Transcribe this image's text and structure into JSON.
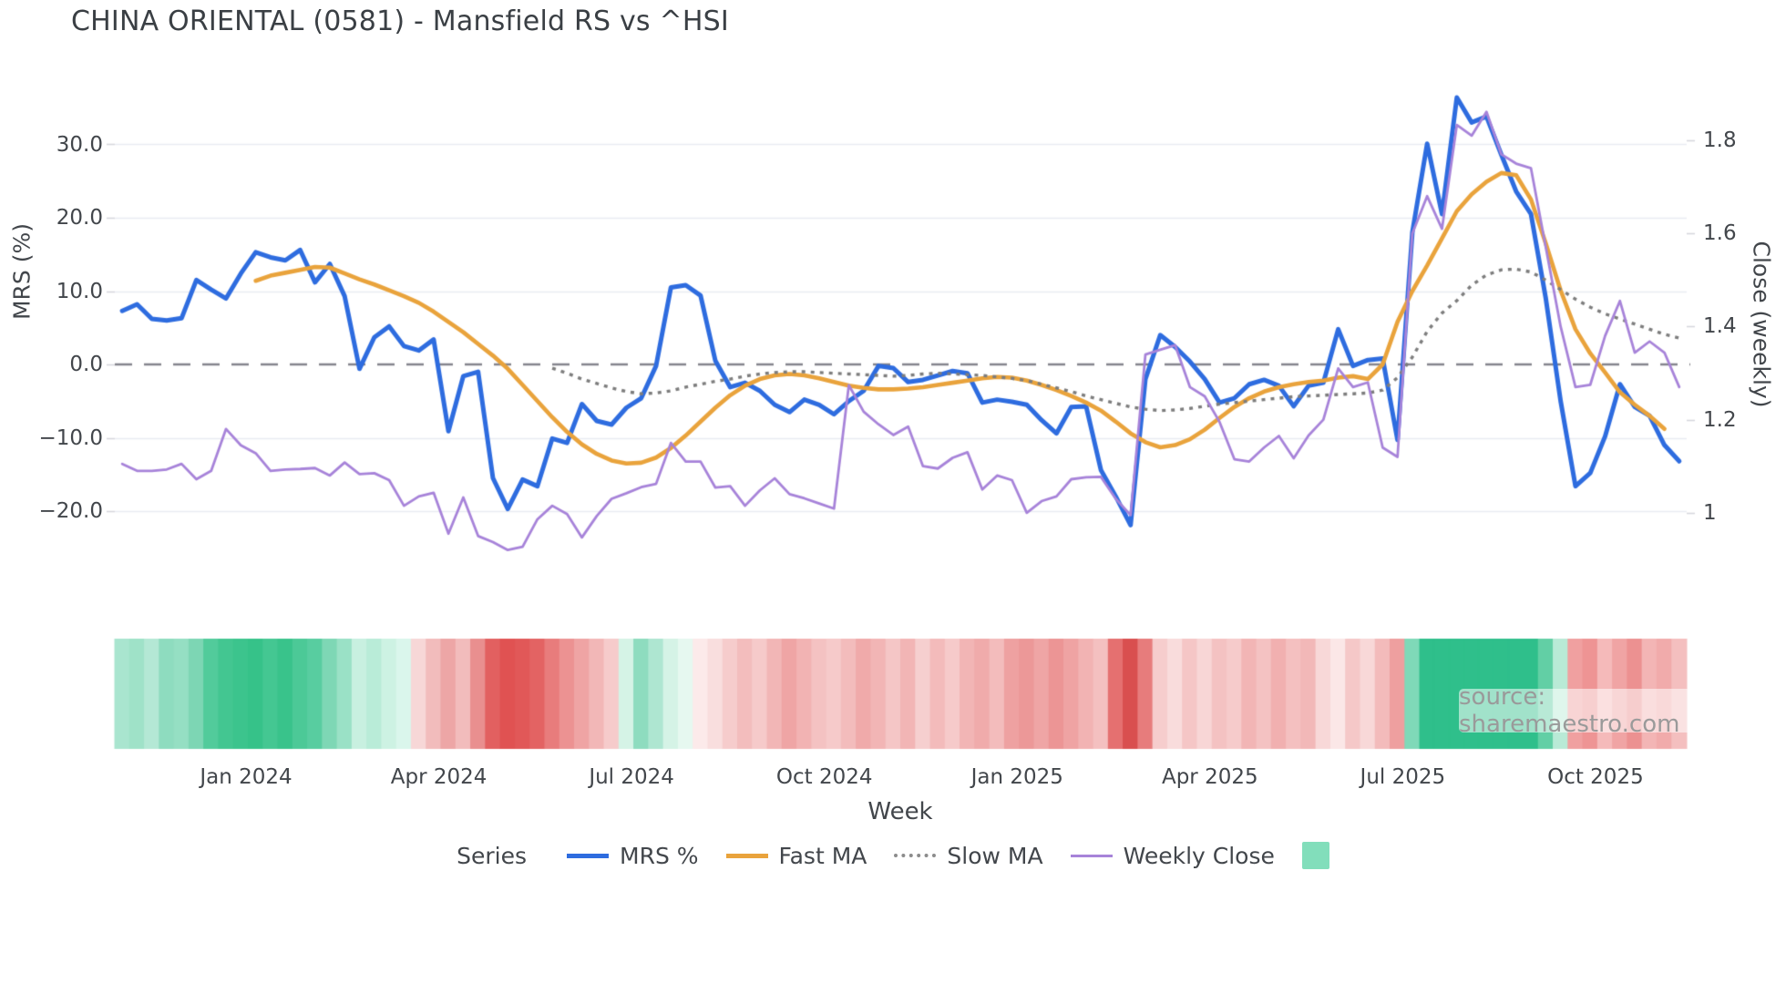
{
  "title": "CHINA ORIENTAL (0581) - Mansfield RS vs ^HSI",
  "watermark": "source: sharemaestro.com",
  "axes": {
    "left": {
      "title": "MRS (%)",
      "ticks": [
        {
          "label": "30.0",
          "value": 30
        },
        {
          "label": "20.0",
          "value": 20
        },
        {
          "label": "10.0",
          "value": 10
        },
        {
          "label": "0.0",
          "value": 0
        },
        {
          "label": "−10.0",
          "value": -10
        },
        {
          "label": "−20.0",
          "value": -20
        }
      ]
    },
    "right": {
      "title": "Close (weekly)",
      "ticks": [
        {
          "label": "1.8",
          "value": 1.8
        },
        {
          "label": "1.6",
          "value": 1.6
        },
        {
          "label": "1.4",
          "value": 1.4
        },
        {
          "label": "1.2",
          "value": 1.2
        },
        {
          "label": "1",
          "value": 1.0
        }
      ]
    },
    "x": {
      "title": "Week",
      "ticks": [
        {
          "label": "Jan 2024",
          "week": 8
        },
        {
          "label": "Apr 2024",
          "week": 21
        },
        {
          "label": "Jul 2024",
          "week": 34
        },
        {
          "label": "Oct 2024",
          "week": 47
        },
        {
          "label": "Jan 2025",
          "week": 60
        },
        {
          "label": "Apr 2025",
          "week": 73
        },
        {
          "label": "Jul 2025",
          "week": 86
        },
        {
          "label": "Oct 2025",
          "week": 99
        }
      ]
    }
  },
  "legend": {
    "title": "Series",
    "items": [
      {
        "label": "MRS %",
        "style": "line",
        "color": "#2e6cdf",
        "thickness": 5
      },
      {
        "label": "Fast MA",
        "style": "line",
        "color": "#e9a33c",
        "thickness": 5
      },
      {
        "label": "Slow MA",
        "style": "dotted",
        "color": "#8c8c8c",
        "thickness": 4
      },
      {
        "label": "Weekly Close",
        "style": "line",
        "color": "#a783d9",
        "thickness": 3
      },
      {
        "label": "",
        "style": "square",
        "color": "#82debb",
        "thickness": 0
      }
    ]
  },
  "colors": {
    "mrs": "#2e6cdf",
    "fast_ma": "#e9a33c",
    "slow_ma": "#7d7d7d",
    "weekly_close": "#a783d9",
    "zero_line": "#85858d",
    "gridline": "#e9ebf1",
    "tick_stub": "#d6d7dd",
    "heat_green": "#2fbf8b",
    "heat_red": "#d94f4f",
    "text": "#42464b"
  },
  "chart_data": {
    "type": "line",
    "title": "CHINA ORIENTAL (0581) - Mansfield RS vs ^HSI",
    "xlabel": "Week",
    "ylabel_left": "MRS (%)",
    "ylabel_right": "Close (weekly)",
    "x_range_weeks": 106,
    "x_start_label": "Nov 2023",
    "x_end_label": "Nov 2025",
    "ylim_left": [
      -30,
      38.5
    ],
    "ylim_right": [
      0.85,
      1.92
    ],
    "grid": "horizontal-only",
    "legend_position": "bottom-center",
    "zero_reference_line": 0,
    "series": [
      {
        "name": "MRS %",
        "axis": "left",
        "values": [
          7.3,
          8.2,
          6.2,
          6.0,
          6.3,
          11.5,
          10.2,
          9.0,
          12.4,
          15.3,
          14.6,
          14.2,
          15.6,
          11.2,
          13.7,
          9.3,
          -0.6,
          3.7,
          5.2,
          2.5,
          1.9,
          3.4,
          -9.1,
          -1.6,
          -1.0,
          -15.5,
          -19.7,
          -15.7,
          -16.6,
          -10.1,
          -10.7,
          -5.4,
          -7.7,
          -8.2,
          -5.9,
          -4.6,
          -0.2,
          10.5,
          10.8,
          9.4,
          0.5,
          -3.1,
          -2.5,
          -3.6,
          -5.5,
          -6.5,
          -4.8,
          -5.5,
          -6.8,
          -5.0,
          -3.6,
          -0.2,
          -0.5,
          -2.4,
          -2.1,
          -1.5,
          -0.9,
          -1.2,
          -5.2,
          -4.8,
          -5.1,
          -5.5,
          -7.6,
          -9.4,
          -5.8,
          -5.7,
          -14.4,
          -18.0,
          -21.9,
          -2.0,
          4.0,
          2.4,
          0.4,
          -2.0,
          -5.2,
          -4.6,
          -2.7,
          -2.1,
          -2.9,
          -5.7,
          -2.9,
          -2.5,
          4.8,
          -0.2,
          0.6,
          0.8,
          -10.3,
          18.0,
          30.1,
          20.5,
          36.4,
          33.0,
          33.8,
          28.6,
          23.6,
          20.5,
          9.0,
          -5.0,
          -16.6,
          -14.8,
          -9.8,
          -2.7,
          -5.8,
          -7.0,
          -11.0,
          -13.2
        ]
      },
      {
        "name": "Fast MA",
        "axis": "left",
        "values": [
          null,
          null,
          null,
          null,
          null,
          null,
          null,
          null,
          null,
          11.4,
          12.1,
          12.5,
          12.9,
          13.3,
          13.2,
          12.4,
          11.6,
          10.9,
          10.1,
          9.3,
          8.4,
          7.2,
          5.8,
          4.4,
          2.8,
          1.2,
          -0.6,
          -2.8,
          -5.0,
          -7.2,
          -9.2,
          -10.9,
          -12.2,
          -13.1,
          -13.5,
          -13.4,
          -12.7,
          -11.4,
          -9.7,
          -7.8,
          -5.9,
          -4.2,
          -2.9,
          -2.0,
          -1.5,
          -1.3,
          -1.5,
          -1.9,
          -2.4,
          -2.9,
          -3.2,
          -3.4,
          -3.4,
          -3.3,
          -3.1,
          -2.8,
          -2.5,
          -2.2,
          -1.9,
          -1.7,
          -1.8,
          -2.2,
          -2.8,
          -3.5,
          -4.3,
          -5.2,
          -6.3,
          -7.8,
          -9.4,
          -10.6,
          -11.3,
          -11.0,
          -10.2,
          -8.9,
          -7.3,
          -5.8,
          -4.6,
          -3.7,
          -3.1,
          -2.7,
          -2.4,
          -2.2,
          -1.8,
          -1.6,
          -2.0,
          0.0,
          5.8,
          10.0,
          13.5,
          17.2,
          20.9,
          23.2,
          24.9,
          26.1,
          25.8,
          22.5,
          16.5,
          10.1,
          4.8,
          1.5,
          -1.1,
          -3.8,
          -5.5,
          -7.0,
          -8.8
        ]
      },
      {
        "name": "Slow MA",
        "axis": "left",
        "values": [
          null,
          null,
          null,
          null,
          null,
          null,
          null,
          null,
          null,
          null,
          null,
          null,
          null,
          null,
          null,
          null,
          null,
          null,
          null,
          null,
          null,
          null,
          null,
          null,
          null,
          null,
          null,
          null,
          null,
          -0.5,
          -1.2,
          -2.0,
          -2.6,
          -3.2,
          -3.7,
          -4.0,
          -3.9,
          -3.6,
          -3.1,
          -2.7,
          -2.3,
          -2.0,
          -1.6,
          -1.3,
          -1.1,
          -1.0,
          -1.0,
          -1.1,
          -1.2,
          -1.3,
          -1.4,
          -1.5,
          -1.6,
          -1.5,
          -1.3,
          -1.2,
          -1.3,
          -1.4,
          -1.5,
          -1.7,
          -1.9,
          -2.2,
          -2.7,
          -3.2,
          -3.7,
          -4.3,
          -4.8,
          -5.3,
          -5.8,
          -6.1,
          -6.3,
          -6.2,
          -6.0,
          -5.7,
          -5.4,
          -5.2,
          -5.0,
          -4.8,
          -4.6,
          -4.4,
          -4.3,
          -4.2,
          -4.1,
          -4.0,
          -3.9,
          -3.5,
          -1.8,
          1.0,
          4.5,
          7.0,
          8.7,
          10.8,
          12.2,
          12.9,
          13.0,
          12.6,
          11.5,
          10.2,
          8.9,
          7.8,
          6.9,
          6.2,
          5.5,
          4.8,
          4.1,
          3.6
        ]
      },
      {
        "name": "Weekly Close",
        "axis": "right",
        "values": [
          1.105,
          1.09,
          1.09,
          1.093,
          1.105,
          1.072,
          1.09,
          1.18,
          1.145,
          1.128,
          1.09,
          1.093,
          1.094,
          1.096,
          1.08,
          1.108,
          1.083,
          1.085,
          1.07,
          1.015,
          1.035,
          1.043,
          0.955,
          1.033,
          0.95,
          0.937,
          0.92,
          0.927,
          0.986,
          1.015,
          0.997,
          0.947,
          0.993,
          1.03,
          1.042,
          1.055,
          1.062,
          1.15,
          1.11,
          1.11,
          1.054,
          1.057,
          1.015,
          1.048,
          1.074,
          1.04,
          1.031,
          1.02,
          1.009,
          1.274,
          1.217,
          1.19,
          1.167,
          1.185,
          1.1,
          1.095,
          1.118,
          1.13,
          1.05,
          1.08,
          1.07,
          1.0,
          1.025,
          1.035,
          1.072,
          1.076,
          1.077,
          1.03,
          0.995,
          1.34,
          1.35,
          1.36,
          1.27,
          1.25,
          1.195,
          1.115,
          1.11,
          1.14,
          1.165,
          1.117,
          1.166,
          1.2,
          1.31,
          1.27,
          1.28,
          1.14,
          1.12,
          1.6,
          1.68,
          1.61,
          1.833,
          1.81,
          1.861,
          1.77,
          1.75,
          1.74,
          1.57,
          1.4,
          1.27,
          1.275,
          1.38,
          1.455,
          1.344,
          1.368,
          1.344,
          1.27
        ]
      }
    ],
    "heatmap_strip": {
      "description": "weekly color band below chart",
      "colors": [
        "#a9e5cf",
        "#9fe2c8",
        "#b4e8d5",
        "#8edcbf",
        "#95dfc3",
        "#7dd6b4",
        "#52cb9b",
        "#43c691",
        "#3cc48d",
        "#36c289",
        "#44c792",
        "#39c38b",
        "#4cc997",
        "#58cda0",
        "#7ed7b5",
        "#9ae1c6",
        "#c8f0e0",
        "#b9ecd8",
        "#cdf2e3",
        "#daf6ec",
        "#f7d7d7",
        "#f2bcbc",
        "#eda6a6",
        "#f2bcbc",
        "#e98f8f",
        "#e26060",
        "#e05252",
        "#e15858",
        "#e36363",
        "#e87c7c",
        "#ec9292",
        "#efa4a4",
        "#f2b7b7",
        "#f6cbcb",
        "#d5f3e6",
        "#8edcbf",
        "#aee6d1",
        "#d5f3e6",
        "#e6f8f0",
        "#fceaea",
        "#f9dede",
        "#f6cccc",
        "#f3bdbd",
        "#f6caca",
        "#f2b6b6",
        "#efa5a5",
        "#f2b3b3",
        "#f4c2c2",
        "#f6caca",
        "#f3bcbc",
        "#f0aaaa",
        "#f2b5b5",
        "#f5c6c6",
        "#f2b5b5",
        "#f6cfcf",
        "#f3bbbb",
        "#f6caca",
        "#f2b5b5",
        "#f0abab",
        "#f3bcbc",
        "#eea1a1",
        "#ec9898",
        "#efa5a5",
        "#ec9595",
        "#efa3a3",
        "#f2b3b3",
        "#f4c0c0",
        "#e57070",
        "#d94f4f",
        "#e77c7c",
        "#f6cdcd",
        "#f9dcdc",
        "#f5c6c6",
        "#f8d6d6",
        "#f4c2c2",
        "#f6cbcb",
        "#f2b5b5",
        "#f4c2c2",
        "#f1b0b0",
        "#f4c0c0",
        "#f2b8b8",
        "#f8d8d8",
        "#fbe7e7",
        "#f5c8c8",
        "#f8d8d8",
        "#f3bbbb",
        "#ee9f9f",
        "#7fd9b8",
        "#2fbf8b",
        "#2fbf8b",
        "#2fbf8b",
        "#2fbf8b",
        "#2fbf8b",
        "#2fbf8b",
        "#2fbf8b",
        "#2fbf8b",
        "#62cfa5",
        "#b9ead6",
        "#f0a0a0",
        "#ee9494",
        "#f5baba",
        "#f0a4a4",
        "#ec9191",
        "#f3b5b5",
        "#f1abab",
        "#f4bfbf"
      ]
    }
  }
}
